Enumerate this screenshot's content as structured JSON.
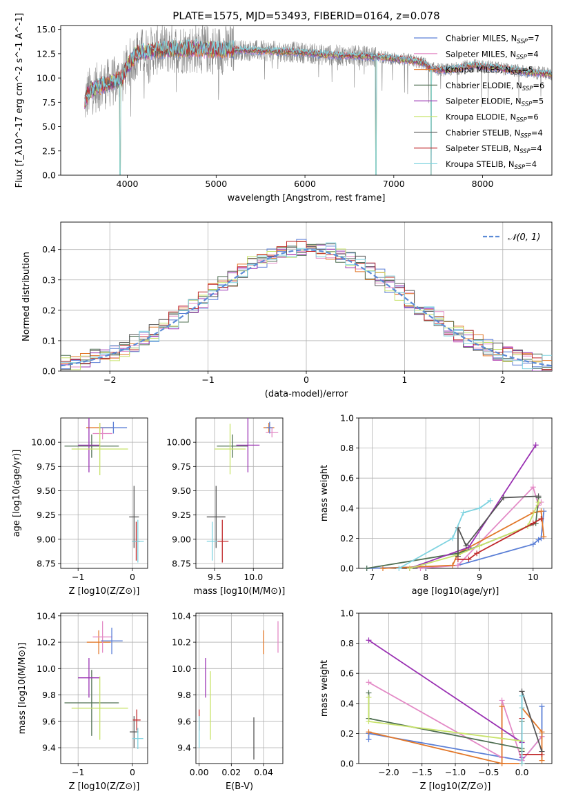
{
  "figure_title": "PLATE=1575, MJD=53493, FIBERID=0164, z=0.078",
  "colors": {
    "chabrier_miles": "#5b7fd6",
    "salpeter_miles": "#e38ac6",
    "kroupa_miles": "#e2782a",
    "chabrier_elodie": "#4f6f52",
    "salpeter_elodie": "#9a31b3",
    "kroupa_elodie": "#c8e36b",
    "chabrier_stelib": "#555555",
    "salpeter_stelib": "#c0282a",
    "kroupa_stelib": "#7fd3e0",
    "spectrum": "#888888",
    "normal_curve": "#5b8ad6"
  },
  "chart_data": [
    {
      "id": "spectrum",
      "type": "line",
      "title": "PLATE=1575, MJD=53493, FIBERID=0164, z=0.078",
      "xlabel": "wavelength [Angstrom, rest frame]",
      "ylabel": "Flux [f_λ10^-17 erg cm^-2 s^-1 A^-1]",
      "xlim": [
        3250,
        8780
      ],
      "ylim": [
        0,
        15.4
      ],
      "xticks": [
        4000,
        5000,
        6000,
        7000,
        8000
      ],
      "yticks": [
        0.0,
        2.5,
        5.0,
        7.5,
        10.0,
        12.5,
        15.0
      ],
      "ytick_labels": [
        "0.0",
        "2.5",
        "5.0",
        "7.5",
        "10.0",
        "12.5",
        "15.0"
      ],
      "grid": false,
      "legend_position": "top-right",
      "legend": [
        {
          "prefix": "Chabrier MILES, N",
          "sub": "SSP",
          "suffix": "=7",
          "color": "#5b7fd6"
        },
        {
          "prefix": "Salpeter MILES, N",
          "sub": "SSP",
          "suffix": "=4",
          "color": "#e38ac6"
        },
        {
          "prefix": "Kroupa MILES, N",
          "sub": "SSP",
          "suffix": "=5",
          "color": "#e2782a"
        },
        {
          "prefix": "Chabrier ELODIE, N",
          "sub": "SSP",
          "suffix": "=6",
          "color": "#4f6f52"
        },
        {
          "prefix": "Salpeter ELODIE, N",
          "sub": "SSP",
          "suffix": "=5",
          "color": "#9a31b3"
        },
        {
          "prefix": "Kroupa ELODIE, N",
          "sub": "SSP",
          "suffix": "=6",
          "color": "#c8e36b"
        },
        {
          "prefix": "Chabrier STELIB, N",
          "sub": "SSP",
          "suffix": "=4",
          "color": "#555555"
        },
        {
          "prefix": "Salpeter STELIB, N",
          "sub": "SSP",
          "suffix": "=4",
          "color": "#c0282a"
        },
        {
          "prefix": "Kroupa STELIB, N",
          "sub": "SSP",
          "suffix": "=4",
          "color": "#7fd3e0"
        }
      ],
      "continuum_anchors": {
        "x": [
          3520,
          3560,
          3650,
          3800,
          3950,
          4000,
          4100,
          4300,
          4500,
          4800,
          5000,
          5200,
          5500,
          5800,
          6000,
          6200,
          6500,
          6800,
          7000,
          7200,
          7350,
          7400,
          7600,
          7900,
          8200,
          8500,
          8780
        ],
        "y": [
          7.4,
          8.5,
          9.0,
          9.5,
          10.0,
          11.2,
          12.5,
          12.8,
          13.0,
          13.0,
          12.9,
          12.9,
          12.8,
          12.7,
          12.6,
          12.4,
          12.3,
          12.2,
          12.0,
          11.8,
          11.5,
          11.0,
          10.8,
          11.3,
          11.0,
          10.6,
          10.4
        ]
      },
      "dropouts": [
        3510,
        3920,
        6800,
        7420
      ]
    },
    {
      "id": "residuals",
      "type": "line",
      "xlabel": "(data-model)/error",
      "ylabel": "Normed distribution",
      "xlim": [
        -2.5,
        2.5
      ],
      "ylim": [
        0,
        0.49
      ],
      "xticks": [
        -2,
        -1,
        0,
        1,
        2
      ],
      "xtick_labels": [
        "−2",
        "−1",
        "0",
        "1",
        "2"
      ],
      "yticks": [
        0.0,
        0.1,
        0.2,
        0.3,
        0.4
      ],
      "ytick_labels": [
        "0.0",
        "0.1",
        "0.2",
        "0.3",
        "0.4"
      ],
      "grid": true,
      "legend_position": "top-right",
      "legend": [
        {
          "label": "𝒩(0, 1)",
          "color": "#5b8ad6",
          "dashed": true
        }
      ],
      "bins": {
        "start": -2.5,
        "width": 0.1
      }
    },
    {
      "id": "age_vs_Z",
      "type": "scatter",
      "xlabel": "Z [log10(Z/Z⊙)]",
      "ylabel": "age  [log10(age/yr)]",
      "xlim": [
        -1.32,
        0.28
      ],
      "ylim": [
        8.7,
        10.25
      ],
      "xticks": [
        -1,
        0
      ],
      "xtick_labels": [
        "−1",
        "0"
      ],
      "yticks": [
        8.75,
        9.0,
        9.25,
        9.5,
        9.75,
        10.0
      ],
      "ytick_labels": [
        "8.75",
        "9.00",
        "9.25",
        "9.50",
        "9.75",
        "10.00"
      ],
      "grid": true,
      "points": [
        {
          "x": -0.6,
          "y": 10.15,
          "xerr": 0.25,
          "yerr": 0.05,
          "color": "#e2782a"
        },
        {
          "x": -0.55,
          "y": 10.09,
          "xerr": 0.18,
          "yerr": 0.06,
          "color": "#e38ac6"
        },
        {
          "x": -0.35,
          "y": 10.15,
          "xerr": 0.25,
          "yerr": 0.06,
          "color": "#5b7fd6"
        },
        {
          "x": -0.75,
          "y": 9.96,
          "xerr": 0.5,
          "yerr": 0.12,
          "color": "#4f6f52"
        },
        {
          "x": -0.8,
          "y": 9.97,
          "xerr": 0.2,
          "yerr": 0.28,
          "color": "#9a31b3"
        },
        {
          "x": -0.6,
          "y": 9.93,
          "xerr": 0.52,
          "yerr": 0.27,
          "color": "#c8e36b"
        },
        {
          "x": 0.03,
          "y": 9.23,
          "xerr": 0.09,
          "yerr": 0.32,
          "color": "#555555"
        },
        {
          "x": 0.07,
          "y": 8.98,
          "xerr": 0.07,
          "yerr": 0.2,
          "color": "#c0282a"
        },
        {
          "x": 0.1,
          "y": 8.98,
          "xerr": 0.11,
          "yerr": 0.22,
          "color": "#7fd3e0"
        }
      ]
    },
    {
      "id": "age_vs_mass",
      "type": "scatter",
      "xlabel": "mass [log10(M/M⊙)]",
      "ylabel": "",
      "xlim": [
        9.26,
        10.38
      ],
      "ylim": [
        8.7,
        10.25
      ],
      "xticks": [
        9.5,
        10.0
      ],
      "xtick_labels": [
        "9.5",
        "10.0"
      ],
      "yticks": [
        8.75,
        9.0,
        9.25,
        9.5,
        9.75,
        10.0
      ],
      "ytick_labels": [
        "8.75",
        "9.00",
        "9.25",
        "9.50",
        "9.75",
        "10.00"
      ],
      "grid": true,
      "points": [
        {
          "x": 10.2,
          "y": 10.15,
          "xerr": 0.07,
          "yerr": 0.05,
          "color": "#e2782a"
        },
        {
          "x": 10.24,
          "y": 10.1,
          "xerr": 0.08,
          "yerr": 0.05,
          "color": "#e38ac6"
        },
        {
          "x": 10.21,
          "y": 10.15,
          "xerr": 0.04,
          "yerr": 0.06,
          "color": "#5b7fd6"
        },
        {
          "x": 9.73,
          "y": 9.96,
          "xerr": 0.2,
          "yerr": 0.12,
          "color": "#4f6f52"
        },
        {
          "x": 9.93,
          "y": 9.97,
          "xerr": 0.15,
          "yerr": 0.28,
          "color": "#9a31b3"
        },
        {
          "x": 9.7,
          "y": 9.93,
          "xerr": 0.2,
          "yerr": 0.26,
          "color": "#c8e36b"
        },
        {
          "x": 9.52,
          "y": 9.23,
          "xerr": 0.12,
          "yerr": 0.32,
          "color": "#555555"
        },
        {
          "x": 9.6,
          "y": 8.98,
          "xerr": 0.08,
          "yerr": 0.22,
          "color": "#c0282a"
        },
        {
          "x": 9.47,
          "y": 8.98,
          "xerr": 0.07,
          "yerr": 0.2,
          "color": "#7fd3e0"
        }
      ]
    },
    {
      "id": "weight_vs_age",
      "type": "line",
      "xlabel": "age  [log10(age/yr)]",
      "ylabel": "mass weight",
      "xlim": [
        6.75,
        10.35
      ],
      "ylim": [
        0,
        1.0
      ],
      "xticks": [
        7,
        8,
        9,
        10
      ],
      "xtick_labels": [
        "7",
        "8",
        "9",
        "10"
      ],
      "yticks": [
        0.0,
        0.2,
        0.4,
        0.6,
        0.8,
        1.0
      ],
      "ytick_labels": [
        "0.0",
        "0.2",
        "0.4",
        "0.6",
        "0.8",
        "1.0"
      ],
      "grid": true,
      "series": [
        {
          "color": "#5b7fd6",
          "x": [
            6.9,
            8.0,
            8.6,
            10.0,
            10.1,
            10.15,
            10.2
          ],
          "y": [
            0.0,
            0.01,
            0.02,
            0.16,
            0.19,
            0.2,
            0.38
          ]
        },
        {
          "color": "#e38ac6",
          "x": [
            7.9,
            8.6,
            10.0,
            10.1,
            10.15
          ],
          "y": [
            0.0,
            0.02,
            0.54,
            0.42,
            0.44
          ]
        },
        {
          "color": "#e2782a",
          "x": [
            7.2,
            8.5,
            8.6,
            10.0,
            10.15,
            10.2
          ],
          "y": [
            0.0,
            0.02,
            0.1,
            0.37,
            0.38,
            0.21
          ]
        },
        {
          "color": "#4f6f52",
          "x": [
            6.9,
            8.6,
            9.0,
            10.05,
            10.1
          ],
          "y": [
            0.0,
            0.1,
            0.15,
            0.3,
            0.47
          ]
        },
        {
          "color": "#9a31b3",
          "x": [
            7.7,
            8.8,
            10.05
          ],
          "y": [
            0.0,
            0.14,
            0.82
          ]
        },
        {
          "color": "#c8e36b",
          "x": [
            7.7,
            8.6,
            9.0,
            9.9,
            10.1
          ],
          "y": [
            0.0,
            0.09,
            0.15,
            0.28,
            0.44
          ]
        },
        {
          "color": "#555555",
          "x": [
            8.6,
            8.6,
            8.75,
            9.45,
            10.1
          ],
          "y": [
            0.08,
            0.27,
            0.15,
            0.47,
            0.48
          ]
        },
        {
          "color": "#c0282a",
          "x": [
            8.6,
            8.8,
            8.95,
            10.0,
            10.15
          ],
          "y": [
            0.06,
            0.06,
            0.1,
            0.3,
            0.33
          ]
        },
        {
          "color": "#7fd3e0",
          "x": [
            7.5,
            8.5,
            8.7,
            9.0,
            9.2
          ],
          "y": [
            0.0,
            0.2,
            0.37,
            0.4,
            0.45
          ]
        }
      ]
    },
    {
      "id": "mass_vs_Z",
      "type": "scatter",
      "xlabel": "Z [log10(Z/Z⊙)]",
      "ylabel": "mass [log10(M/M⊙)]",
      "xlim": [
        -1.32,
        0.28
      ],
      "ylim": [
        9.28,
        10.42
      ],
      "xticks": [
        -1,
        0
      ],
      "xtick_labels": [
        "−1",
        "0"
      ],
      "yticks": [
        9.4,
        9.6,
        9.8,
        10.0,
        10.2,
        10.4
      ],
      "ytick_labels": [
        "9.4",
        "9.6",
        "9.8",
        "10.0",
        "10.2",
        "10.4"
      ],
      "grid": true,
      "points": [
        {
          "x": -0.62,
          "y": 10.2,
          "xerr": 0.22,
          "yerr": 0.09,
          "color": "#e2782a"
        },
        {
          "x": -0.55,
          "y": 10.24,
          "xerr": 0.18,
          "yerr": 0.12,
          "color": "#e38ac6"
        },
        {
          "x": -0.38,
          "y": 10.21,
          "xerr": 0.2,
          "yerr": 0.1,
          "color": "#5b7fd6"
        },
        {
          "x": -0.75,
          "y": 9.74,
          "xerr": 0.5,
          "yerr": 0.25,
          "color": "#4f6f52"
        },
        {
          "x": -0.8,
          "y": 9.93,
          "xerr": 0.2,
          "yerr": 0.15,
          "color": "#9a31b3"
        },
        {
          "x": -0.6,
          "y": 9.7,
          "xerr": 0.52,
          "yerr": 0.24,
          "color": "#c8e36b"
        },
        {
          "x": 0.03,
          "y": 9.52,
          "xerr": 0.08,
          "yerr": 0.12,
          "color": "#555555"
        },
        {
          "x": 0.08,
          "y": 9.61,
          "xerr": 0.07,
          "yerr": 0.08,
          "color": "#c0282a"
        },
        {
          "x": 0.1,
          "y": 9.47,
          "xerr": 0.1,
          "yerr": 0.08,
          "color": "#7fd3e0"
        }
      ]
    },
    {
      "id": "mass_vs_ebv",
      "type": "scatter",
      "xlabel": "E(B-V)",
      "ylabel": "",
      "xlim": [
        -0.002,
        0.052
      ],
      "ylim": [
        9.28,
        10.42
      ],
      "xticks": [
        0.0,
        0.02,
        0.04
      ],
      "xtick_labels": [
        "0.00",
        "0.02",
        "0.04"
      ],
      "yticks": [
        9.4,
        9.6,
        9.8,
        10.0,
        10.2,
        10.4
      ],
      "ytick_labels": [
        "9.4",
        "9.6",
        "9.8",
        "10.0",
        "10.2",
        "10.4"
      ],
      "grid": true,
      "points": [
        {
          "x": 0.04,
          "y": 10.2,
          "xerr": 0.0,
          "yerr": 0.09,
          "color": "#e2782a"
        },
        {
          "x": 0.049,
          "y": 10.24,
          "xerr": 0.0,
          "yerr": 0.12,
          "color": "#e38ac6"
        },
        {
          "x": 0.0,
          "y": 9.61,
          "xerr": 0.0,
          "yerr": 0.08,
          "color": "#c0282a"
        },
        {
          "x": 0.0,
          "y": 9.52,
          "xerr": 0.0,
          "yerr": 0.12,
          "color": "#7fd3e0"
        },
        {
          "x": 0.004,
          "y": 9.93,
          "xerr": 0.0,
          "yerr": 0.15,
          "color": "#9a31b3"
        },
        {
          "x": 0.007,
          "y": 9.72,
          "xerr": 0.0,
          "yerr": 0.26,
          "color": "#c8e36b"
        },
        {
          "x": 0.034,
          "y": 9.47,
          "xerr": 0.0,
          "yerr": 0.16,
          "color": "#555555"
        }
      ]
    },
    {
      "id": "weight_vs_Z",
      "type": "line",
      "xlabel": "Z [log10(Z/Z⊙)]",
      "ylabel": "mass weight",
      "xlim": [
        -2.45,
        0.45
      ],
      "ylim": [
        0,
        1.0
      ],
      "xticks": [
        -2.0,
        -1.5,
        -1.0,
        -0.5,
        0.0
      ],
      "xtick_labels": [
        "−2.0",
        "−1.5",
        "−1.0",
        "−0.5",
        "0.0"
      ],
      "yticks": [
        0.0,
        0.2,
        0.4,
        0.6,
        0.8,
        1.0
      ],
      "ytick_labels": [
        "0.0",
        "0.2",
        "0.4",
        "0.6",
        "0.8",
        "1.0"
      ],
      "grid": true,
      "series": [
        {
          "color": "#5b7fd6",
          "x": [
            -2.3,
            -2.3,
            0.0,
            0.3,
            0.3
          ],
          "y": [
            0.16,
            0.2,
            0.02,
            0.18,
            0.38
          ]
        },
        {
          "color": "#e38ac6",
          "x": [
            -2.3,
            -0.3,
            -0.3,
            0.0,
            0.3
          ],
          "y": [
            0.54,
            0.04,
            0.42,
            0.02,
            0.18
          ]
        },
        {
          "color": "#e2782a",
          "x": [
            -2.3,
            -0.3,
            -0.3,
            -0.3,
            0.0,
            0.0,
            0.3,
            0.3
          ],
          "y": [
            0.21,
            0.0,
            0.38,
            0.0,
            0.0,
            0.37,
            0.21,
            0.02
          ]
        },
        {
          "color": "#4f6f52",
          "x": [
            -2.3,
            -2.3,
            0.0,
            0.0
          ],
          "y": [
            0.47,
            0.3,
            0.1,
            0.28
          ]
        },
        {
          "color": "#9a31b3",
          "x": [
            -2.3,
            0.0,
            0.0
          ],
          "y": [
            0.82,
            0.14,
            0.04
          ]
        },
        {
          "color": "#c8e36b",
          "x": [
            -2.3,
            -2.3,
            0.0,
            0.0
          ],
          "y": [
            0.44,
            0.28,
            0.15,
            0.09
          ]
        },
        {
          "color": "#555555",
          "x": [
            0.0,
            0.0,
            0.3
          ],
          "y": [
            0.08,
            0.48,
            0.08
          ]
        },
        {
          "color": "#c0282a",
          "x": [
            0.0,
            0.0,
            0.3
          ],
          "y": [
            0.3,
            0.06,
            0.06
          ]
        },
        {
          "color": "#7fd3e0",
          "x": [
            0.0,
            0.0,
            0.0
          ],
          "y": [
            0.0,
            0.37,
            0.45
          ]
        }
      ]
    }
  ]
}
